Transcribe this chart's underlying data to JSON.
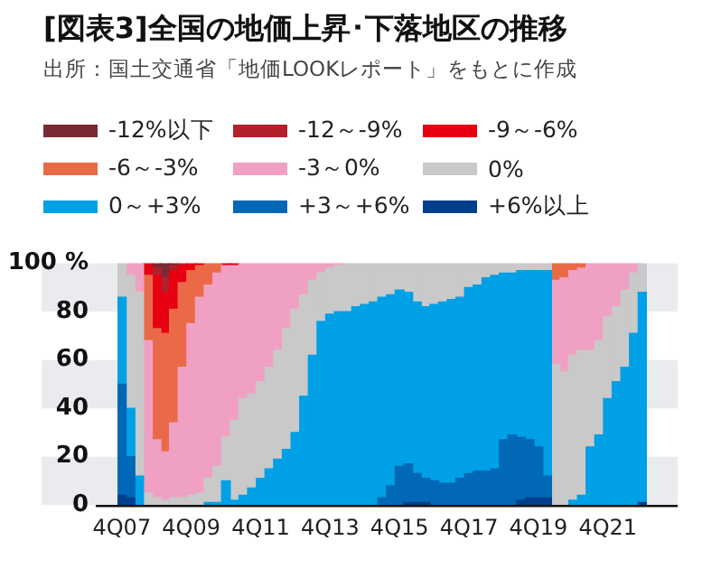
{
  "chart_data": {
    "type": "bar",
    "stacked": true,
    "title": "[図表3]全国の地価上昇･下落地区の推移",
    "annotations": [
      "出所：国土交通省「地価LOOKレポート」をもとに作成"
    ],
    "categories": [
      "4Q07",
      null,
      null,
      null,
      null,
      null,
      null,
      null,
      "4Q09",
      null,
      null,
      null,
      null,
      null,
      null,
      null,
      "4Q11",
      null,
      null,
      null,
      null,
      null,
      null,
      null,
      "4Q13",
      null,
      null,
      null,
      null,
      null,
      null,
      null,
      "4Q15",
      null,
      null,
      null,
      null,
      null,
      null,
      null,
      "4Q17",
      null,
      null,
      null,
      null,
      null,
      null,
      null,
      "4Q19",
      null,
      null,
      null,
      null,
      null,
      null,
      null,
      "4Q21",
      null,
      null,
      null,
      null
    ],
    "series": [
      {
        "name": "+6%以上",
        "color": "#003f8e",
        "values": [
          4,
          3,
          0,
          0,
          0,
          0,
          0,
          0,
          0,
          0,
          0,
          0,
          0,
          0,
          0,
          0,
          0,
          0,
          0,
          0,
          0,
          0,
          0,
          0,
          0,
          0,
          0,
          0,
          0,
          0,
          0,
          0,
          0,
          1,
          1,
          1,
          0,
          0,
          0,
          0,
          0,
          0,
          0,
          0,
          0,
          0,
          2,
          3,
          3,
          3,
          0,
          0,
          0,
          0,
          0,
          0,
          0,
          0,
          0,
          0,
          1
        ]
      },
      {
        "name": "+3～+6%",
        "color": "#0068b7",
        "values": [
          46,
          17,
          0,
          0,
          0,
          0,
          0,
          0,
          0,
          0,
          0,
          0,
          0,
          0,
          0,
          0,
          0,
          0,
          0,
          0,
          0,
          0,
          0,
          0,
          0,
          0,
          0,
          0,
          0,
          0,
          3,
          8,
          16,
          16,
          12,
          10,
          10,
          9,
          9,
          11,
          13,
          14,
          14,
          15,
          27,
          29,
          26,
          24,
          21,
          9,
          0,
          0,
          0,
          0,
          0,
          0,
          0,
          0,
          0,
          0,
          0
        ]
      },
      {
        "name": "0～+3%",
        "color": "#00a0e6",
        "values": [
          36,
          20,
          12,
          0,
          0,
          0,
          0,
          0,
          0,
          0,
          1,
          1,
          10,
          2,
          4,
          7,
          11,
          15,
          19,
          23,
          30,
          45,
          62,
          76,
          79,
          80,
          80,
          82,
          83,
          84,
          83,
          79,
          73,
          71,
          71,
          71,
          73,
          75,
          76,
          75,
          77,
          77,
          80,
          80,
          69,
          67,
          69,
          70,
          73,
          85,
          0,
          0,
          2,
          4,
          24,
          29,
          44,
          51,
          57,
          71,
          87
        ]
      },
      {
        "name": "0%",
        "color": "#c9c9c9",
        "values": [
          14,
          55,
          76,
          5,
          3,
          2,
          3,
          3,
          4,
          5,
          10,
          15,
          18,
          33,
          40,
          39,
          40,
          42,
          45,
          50,
          51,
          42,
          31,
          20,
          19,
          19,
          20,
          18,
          17,
          16,
          14,
          13,
          11,
          12,
          16,
          18,
          17,
          16,
          15,
          14,
          10,
          9,
          6,
          5,
          4,
          4,
          3,
          3,
          3,
          3,
          58,
          55,
          60,
          60,
          40,
          39,
          34,
          31,
          32,
          25,
          12
        ]
      },
      {
        "name": "-3～0%",
        "color": "#f0a0c3",
        "values": [
          0,
          5,
          12,
          63,
          24,
          20,
          31,
          54,
          71,
          81,
          80,
          80,
          71,
          64,
          56,
          54,
          49,
          43,
          36,
          27,
          19,
          13,
          7,
          4,
          2,
          1,
          0,
          0,
          0,
          0,
          0,
          0,
          0,
          0,
          0,
          0,
          0,
          0,
          0,
          0,
          0,
          0,
          0,
          0,
          0,
          0,
          0,
          0,
          0,
          0,
          35,
          39,
          35,
          34,
          36,
          32,
          22,
          18,
          11,
          4,
          0
        ]
      },
      {
        "name": "-6～-3%",
        "color": "#ea6a47",
        "values": [
          0,
          0,
          0,
          27,
          46,
          49,
          47,
          35,
          22,
          13,
          9,
          4,
          0,
          0,
          0,
          0,
          0,
          0,
          0,
          0,
          0,
          0,
          0,
          0,
          0,
          0,
          0,
          0,
          0,
          0,
          0,
          0,
          0,
          0,
          0,
          0,
          0,
          0,
          0,
          0,
          0,
          0,
          0,
          0,
          0,
          0,
          0,
          0,
          0,
          0,
          7,
          6,
          3,
          2,
          0,
          0,
          0,
          0,
          0,
          0,
          0
        ]
      },
      {
        "name": "-9～-6%",
        "color": "#e60012",
        "values": [
          0,
          0,
          0,
          5,
          22,
          17,
          16,
          7,
          3,
          1,
          0,
          0,
          1,
          1,
          0,
          0,
          0,
          0,
          0,
          0,
          0,
          0,
          0,
          0,
          0,
          0,
          0,
          0,
          0,
          0,
          0,
          0,
          0,
          0,
          0,
          0,
          0,
          0,
          0,
          0,
          0,
          0,
          0,
          0,
          0,
          0,
          0,
          0,
          0,
          0,
          0,
          0,
          0,
          0,
          0,
          0,
          0,
          0,
          0,
          0,
          0
        ]
      },
      {
        "name": "-12～-9%",
        "color": "#b3202c",
        "values": [
          0,
          0,
          0,
          0,
          3,
          6,
          2,
          1,
          0,
          0,
          0,
          0,
          0,
          0,
          0,
          0,
          0,
          0,
          0,
          0,
          0,
          0,
          0,
          0,
          0,
          0,
          0,
          0,
          0,
          0,
          0,
          0,
          0,
          0,
          0,
          0,
          0,
          0,
          0,
          0,
          0,
          0,
          0,
          0,
          0,
          0,
          0,
          0,
          0,
          0,
          0,
          0,
          0,
          0,
          0,
          0,
          0,
          0,
          0,
          0,
          0
        ]
      },
      {
        "name": "-12%以下",
        "color": "#7a2a33",
        "values": [
          0,
          0,
          0,
          0,
          2,
          6,
          1,
          0,
          0,
          0,
          0,
          0,
          0,
          0,
          0,
          0,
          0,
          0,
          0,
          0,
          0,
          0,
          0,
          0,
          0,
          0,
          0,
          0,
          0,
          0,
          0,
          0,
          0,
          0,
          0,
          0,
          0,
          0,
          0,
          0,
          0,
          0,
          0,
          0,
          0,
          0,
          0,
          0,
          0,
          0,
          0,
          0,
          0,
          0,
          0,
          0,
          0,
          0,
          0,
          0,
          0
        ]
      }
    ],
    "ylim": [
      0,
      100
    ],
    "yticks": [
      0,
      20,
      40,
      60,
      {
        "value": 100,
        "label": "100 %"
      },
      80
    ],
    "bands": [
      {
        "axis": "y",
        "from": 0,
        "to": 20,
        "color": "#e9ebee"
      },
      {
        "axis": "y",
        "from": 40,
        "to": 60,
        "color": "#e9ebee"
      },
      {
        "axis": "y",
        "from": 80,
        "to": 100,
        "color": "#e9ebee"
      }
    ],
    "legend": "top left"
  }
}
